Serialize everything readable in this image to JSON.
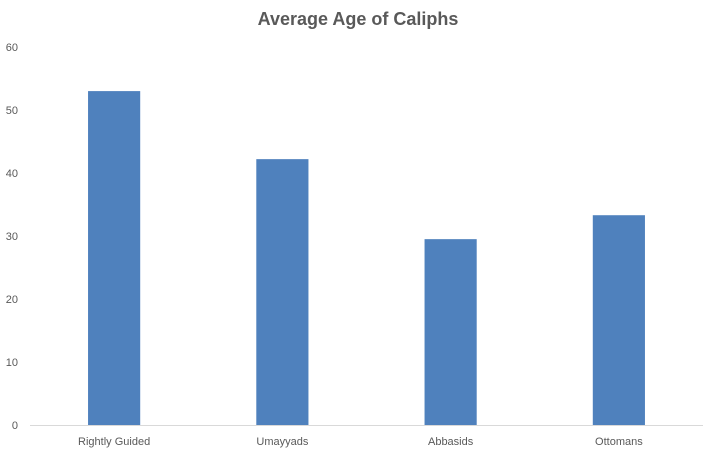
{
  "chart_data": {
    "type": "bar",
    "title": "Average Age of Caliphs",
    "categories": [
      "Rightly Guided",
      "Umayyads",
      "Abbasids",
      "Ottomans"
    ],
    "series": [
      {
        "values": [
          53,
          42.2,
          29.5,
          33.3
        ]
      }
    ],
    "xlabel": "",
    "ylabel": "",
    "ylim": [
      0,
      60
    ],
    "yticks": [
      0,
      10,
      20,
      30,
      40,
      50,
      60
    ],
    "grid": false,
    "legend": "none",
    "bar_color": "#4f81bd",
    "axis_color": "#d9d9d9",
    "text_color": "#595959"
  }
}
